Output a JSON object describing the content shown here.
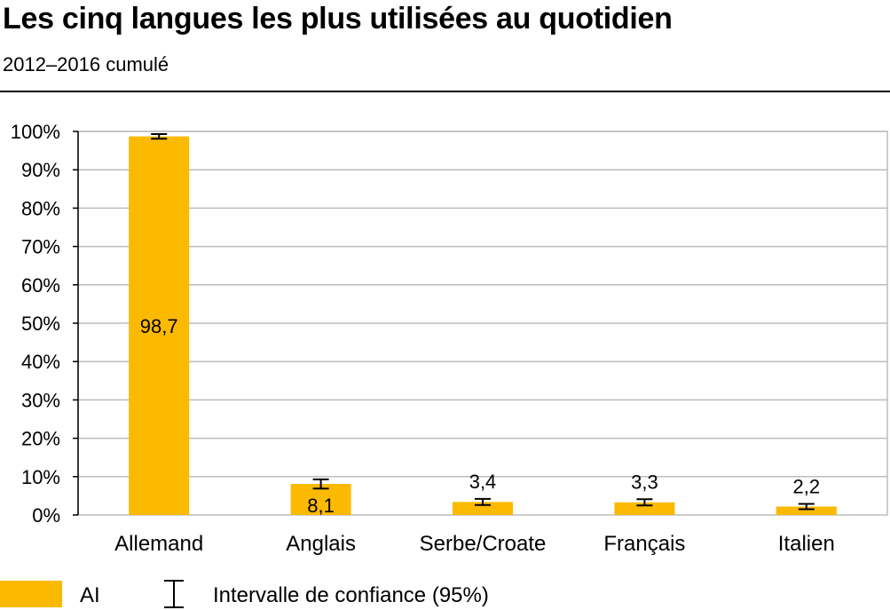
{
  "header": {
    "title": "Les cinq langues les plus utilisées au quotidien",
    "subtitle": "2012–2016 cumulé"
  },
  "legend": {
    "series_label": "AI",
    "ci_label": "Intervalle de confiance (95%)"
  },
  "colors": {
    "bar": "#FBBA00",
    "grid": "#BDBDBD",
    "axis": "#000000"
  },
  "chart_data": {
    "type": "bar",
    "title": "Les cinq langues les plus utilisées au quotidien",
    "subtitle": "2012–2016 cumulé",
    "categories": [
      "Allemand",
      "Anglais",
      "Serbe/Croate",
      "Français",
      "Italien"
    ],
    "series": [
      {
        "name": "AI",
        "values": [
          98.7,
          8.1,
          3.4,
          3.3,
          2.2
        ],
        "value_labels": [
          "98,7",
          "8,1",
          "3,4",
          "3,3",
          "2,2"
        ],
        "ci_low": [
          98.1,
          6.9,
          2.6,
          2.5,
          1.5
        ],
        "ci_high": [
          99.3,
          9.3,
          4.2,
          4.1,
          2.9
        ]
      }
    ],
    "ylim": [
      0,
      100
    ],
    "yticks": [
      0,
      10,
      20,
      30,
      40,
      50,
      60,
      70,
      80,
      90,
      100
    ],
    "ytick_labels": [
      "0%",
      "10%",
      "20%",
      "30%",
      "40%",
      "50%",
      "60%",
      "70%",
      "80%",
      "90%",
      "100%"
    ],
    "grid": true,
    "legend_position": "bottom-left"
  }
}
